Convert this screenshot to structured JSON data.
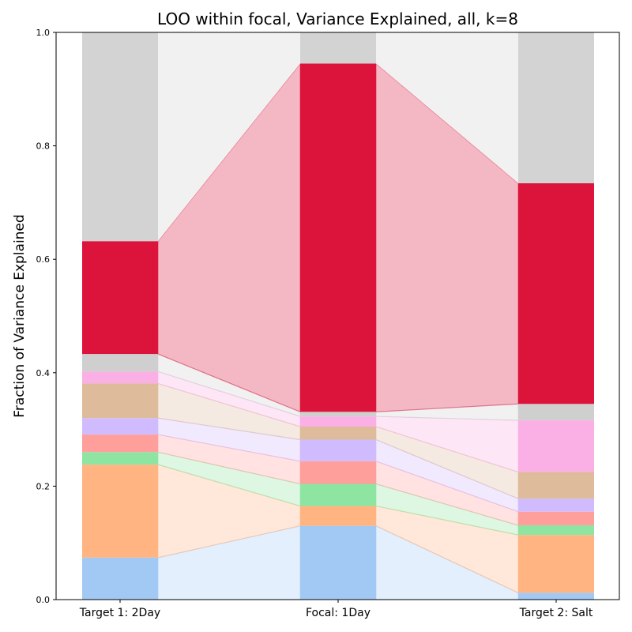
{
  "chart_data": {
    "type": "bar",
    "subtype": "stacked-bar-with-flows",
    "title": "LOO within focal, Variance Explained, all, k=8",
    "xlabel": "",
    "ylabel": "Fraction of Variance Explained",
    "ylim": [
      0,
      1
    ],
    "yticks": [
      "0.0",
      "0.2",
      "0.4",
      "0.6",
      "0.8",
      "1.0"
    ],
    "categories": [
      "Target 1: 2Day",
      "Focal: 1Day",
      "Target 2: Salt"
    ],
    "grid": false,
    "legend": "none",
    "segments": [
      {
        "color": "#a1c9f4",
        "values": [
          0.074,
          0.13,
          0.012
        ]
      },
      {
        "color": "#ffb482",
        "values": [
          0.164,
          0.035,
          0.102
        ]
      },
      {
        "color": "#8de5a1",
        "values": [
          0.022,
          0.039,
          0.017
        ]
      },
      {
        "color": "#ff9f9b",
        "values": [
          0.031,
          0.04,
          0.024
        ]
      },
      {
        "color": "#d0bbff",
        "values": [
          0.029,
          0.038,
          0.023
        ]
      },
      {
        "color": "#debb9b",
        "values": [
          0.061,
          0.023,
          0.047
        ]
      },
      {
        "color": "#fab0e4",
        "values": [
          0.021,
          0.018,
          0.091
        ]
      },
      {
        "color": "#cfcfcf",
        "values": [
          0.031,
          0.008,
          0.029
        ]
      },
      {
        "color": "#dc143c",
        "values": [
          0.199,
          0.614,
          0.389
        ]
      },
      {
        "color": "#d3d3d3",
        "values": [
          0.368,
          0.055,
          0.266
        ]
      }
    ]
  }
}
